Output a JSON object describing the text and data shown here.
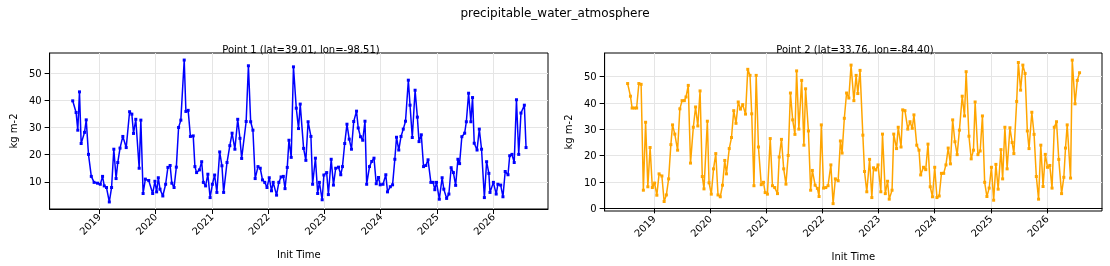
{
  "chart_data": [
    {
      "type": "line",
      "title": "Point 1 (lat=39.01, lon=-98.51)",
      "annotations": [
        "precipitable_water_atmosphere"
      ],
      "xlabel": "Init Time",
      "ylabel": "kg m-2",
      "color": "#0000ff",
      "marker": "square",
      "grid": true,
      "xlim": [
        2018.12,
        2026.97
      ],
      "xticks": [
        2019,
        2020,
        2021,
        2022,
        2023,
        2024,
        2025,
        2026
      ],
      "ylim": [
        0,
        57.4
      ],
      "yticks": [
        10,
        20,
        30,
        40,
        50
      ],
      "x": [
        2018.53,
        2018.59,
        2018.62,
        2018.65,
        2018.68,
        2018.74,
        2018.77,
        2018.81,
        2018.86,
        2018.91,
        2018.97,
        2019.02,
        2019.06,
        2019.09,
        2019.13,
        2019.18,
        2019.22,
        2019.26,
        2019.3,
        2019.33,
        2019.37,
        2019.42,
        2019.48,
        2019.54,
        2019.58,
        2019.61,
        2019.65,
        2019.71,
        2019.74,
        2019.78,
        2019.82,
        2019.88,
        2019.95,
        2019.99,
        2020.02,
        2020.05,
        2020.08,
        2020.13,
        2020.18,
        2020.22,
        2020.26,
        2020.29,
        2020.33,
        2020.37,
        2020.41,
        2020.45,
        2020.51,
        2020.54,
        2020.58,
        2020.62,
        2020.67,
        2020.7,
        2020.73,
        2020.78,
        2020.82,
        2020.85,
        2020.89,
        2020.93,
        2020.97,
        2021.01,
        2021.05,
        2021.09,
        2021.14,
        2021.18,
        2021.21,
        2021.27,
        2021.32,
        2021.36,
        2021.41,
        2021.46,
        2021.5,
        2021.53,
        2021.61,
        2021.65,
        2021.69,
        2021.73,
        2021.77,
        2021.82,
        2021.86,
        2021.9,
        2021.94,
        2021.98,
        2022.02,
        2022.06,
        2022.09,
        2022.15,
        2022.19,
        2022.23,
        2022.27,
        2022.3,
        2022.34,
        2022.37,
        2022.41,
        2022.45,
        2022.5,
        2022.54,
        2022.57,
        2022.63,
        2022.67,
        2022.71,
        2022.76,
        2022.79,
        2022.84,
        2022.88,
        2022.91,
        2022.96,
        2022.99,
        2023.04,
        2023.07,
        2023.12,
        2023.16,
        2023.2,
        2023.25,
        2023.29,
        2023.32,
        2023.36,
        2023.4,
        2023.44,
        2023.48,
        2023.52,
        2023.57,
        2023.6,
        2023.64,
        2023.68,
        2023.72,
        2023.75,
        2023.8,
        2023.84,
        2023.88,
        2023.92,
        2023.96,
        2023.99,
        2024.04,
        2024.09,
        2024.12,
        2024.17,
        2024.21,
        2024.25,
        2024.28,
        2024.32,
        2024.36,
        2024.4,
        2024.44,
        2024.49,
        2024.52,
        2024.56,
        2024.61,
        2024.65,
        2024.68,
        2024.72,
        2024.76,
        2024.8,
        2024.84,
        2024.89,
        2024.93,
        2024.96,
        2024.99,
        2025.04,
        2025.09,
        2025.12,
        2025.17,
        2025.21,
        2025.25,
        2025.29,
        2025.33,
        2025.37,
        2025.4,
        2025.44,
        2025.49,
        2025.52,
        2025.56,
        2025.6,
        2025.63,
        2025.66,
        2025.71,
        2025.75,
        2025.79,
        2025.84,
        2025.88,
        2025.92,
        2025.94,
        2026.0,
        2026.05,
        2026.08,
        2026.13,
        2026.17,
        2026.21,
        2026.26,
        2026.29,
        2026.33,
        2026.37,
        2026.41,
        2026.45,
        2026.49,
        2026.55,
        2026.58
      ],
      "values": [
        39.8,
        35.5,
        29,
        43.1,
        24.1,
        28.2,
        32.8,
        20.1,
        12,
        9.8,
        9.5,
        9.1,
        12,
        8.5,
        7.9,
        2.6,
        7.9,
        22,
        11.2,
        17.1,
        22.4,
        26.7,
        22.6,
        35.8,
        34.9,
        27.8,
        33,
        15,
        32.7,
        5.7,
        11,
        10.5,
        5.7,
        10.2,
        6.3,
        11.5,
        7.3,
        4.8,
        9.1,
        15.3,
        16,
        9.5,
        7.9,
        15.4,
        30,
        32.7,
        54.8,
        35.9,
        36.3,
        26.7,
        26.9,
        15.6,
        13.4,
        14.4,
        17.4,
        9.8,
        8.5,
        12.8,
        4.2,
        9.1,
        12.5,
        6.1,
        21,
        15.9,
        6.1,
        17.1,
        23.3,
        27.9,
        22,
        33,
        26,
        18.6,
        32.2,
        52.7,
        32.1,
        29,
        11.2,
        15.6,
        15,
        10.7,
        9.8,
        7.9,
        11.5,
        6.7,
        9.8,
        5.1,
        9.8,
        11.8,
        12,
        7.5,
        15.3,
        25.3,
        19,
        52.3,
        37.1,
        29.6,
        38.6,
        22.3,
        17.9,
        32.1,
        26.7,
        9.1,
        18.7,
        5.7,
        9.8,
        3.4,
        12.5,
        13.4,
        5.3,
        18.3,
        8.8,
        15,
        15.4,
        12.6,
        15.6,
        24.1,
        31.2,
        25.7,
        22,
        32.2,
        36,
        29.8,
        26.6,
        25.3,
        32.3,
        9.1,
        15.6,
        17.5,
        18.7,
        9.3,
        11.6,
        8.9,
        9.1,
        12.6,
        6.3,
        8.2,
        8.9,
        18.3,
        26.4,
        21.7,
        26.7,
        29.4,
        32.3,
        47.4,
        38.2,
        26.3,
        43.7,
        33.8,
        24.8,
        27.3,
        15.6,
        16,
        18.1,
        9.8,
        9.8,
        7.1,
        9.8,
        3.6,
        11.5,
        7.3,
        3.9,
        5.5,
        15.2,
        13.4,
        8.7,
        18.3,
        16.7,
        26.6,
        27.9,
        32.1,
        42.6,
        32.1,
        41,
        24.2,
        21.7,
        29.4,
        22,
        4.2,
        17.4,
        13.1,
        6.1,
        9.8,
        5.5,
        9.1,
        8.8,
        4.5,
        13.8,
        12.6,
        19.6,
        20.1,
        17.1,
        40.2,
        20.1,
        35.3,
        38.2,
        22.6
      ]
    },
    {
      "type": "line",
      "title": "Point 2 (lat=33.76, lon=-84.40)",
      "xlabel": "Init Time",
      "ylabel": "kg m-2",
      "color": "#ffa500",
      "marker": "square",
      "grid": true,
      "xlim": [
        2018.12,
        2026.98
      ],
      "xticks": [
        2019,
        2020,
        2021,
        2022,
        2023,
        2024,
        2025,
        2026
      ],
      "ylim": [
        -1,
        59
      ],
      "yticks": [
        0,
        10,
        20,
        30,
        40,
        50
      ],
      "x": [
        2018.53,
        2018.58,
        2018.61,
        2018.65,
        2018.69,
        2018.73,
        2018.77,
        2018.81,
        2018.85,
        2018.89,
        2018.93,
        2018.97,
        2019.01,
        2019.05,
        2019.09,
        2019.14,
        2019.18,
        2019.22,
        2019.26,
        2019.3,
        2019.33,
        2019.37,
        2019.42,
        2019.46,
        2019.5,
        2019.54,
        2019.57,
        2019.61,
        2019.65,
        2019.7,
        2019.74,
        2019.78,
        2019.82,
        2019.86,
        2019.89,
        2019.95,
        2019.98,
        2020.02,
        2020.06,
        2020.1,
        2020.14,
        2020.18,
        2020.22,
        2020.26,
        2020.29,
        2020.34,
        2020.38,
        2020.42,
        2020.46,
        2020.5,
        2020.54,
        2020.58,
        2020.63,
        2020.67,
        2020.71,
        2020.74,
        2020.78,
        2020.82,
        2020.86,
        2020.91,
        2020.95,
        2020.98,
        2021.02,
        2021.07,
        2021.11,
        2021.15,
        2021.2,
        2021.23,
        2021.27,
        2021.31,
        2021.35,
        2021.39,
        2021.43,
        2021.47,
        2021.51,
        2021.54,
        2021.58,
        2021.63,
        2021.67,
        2021.7,
        2021.75,
        2021.79,
        2021.82,
        2021.87,
        2021.91,
        2021.94,
        2021.98,
        2022.02,
        2022.06,
        2022.1,
        2022.15,
        2022.19,
        2022.23,
        2022.28,
        2022.32,
        2022.35,
        2022.39,
        2022.43,
        2022.47,
        2022.51,
        2022.56,
        2022.6,
        2022.63,
        2022.67,
        2022.72,
        2022.75,
        2022.79,
        2022.84,
        2022.88,
        2022.91,
        2022.95,
        2022.99,
        2023.04,
        2023.07,
        2023.12,
        2023.16,
        2023.19,
        2023.24,
        2023.27,
        2023.32,
        2023.35,
        2023.4,
        2023.43,
        2023.47,
        2023.52,
        2023.56,
        2023.6,
        2023.63,
        2023.68,
        2023.72,
        2023.75,
        2023.8,
        2023.84,
        2023.88,
        2023.92,
        2023.96,
        2024.0,
        2024.04,
        2024.08,
        2024.12,
        2024.16,
        2024.2,
        2024.24,
        2024.28,
        2024.32,
        2024.36,
        2024.4,
        2024.44,
        2024.49,
        2024.53,
        2024.56,
        2024.61,
        2024.65,
        2024.69,
        2024.72,
        2024.77,
        2024.81,
        2024.85,
        2024.89,
        2024.93,
        2024.97,
        2025.01,
        2025.05,
        2025.09,
        2025.13,
        2025.18,
        2025.21,
        2025.25,
        2025.29,
        2025.34,
        2025.38,
        2025.41,
        2025.46,
        2025.49,
        2025.53,
        2025.57,
        2025.61,
        2025.65,
        2025.68,
        2025.73,
        2025.77,
        2025.81,
        2025.85,
        2025.89,
        2025.93,
        2025.97,
        2026.01,
        2026.05,
        2026.09,
        2026.13,
        2026.17,
        2026.21,
        2026.26,
        2026.3,
        2026.33,
        2026.36,
        2026.42,
        2026.45,
        2026.5,
        2026.54,
        2026.58
      ],
      "values": [
        47.4,
        42.6,
        38.1,
        38.1,
        38.1,
        47.4,
        47.1,
        6.9,
        32.7,
        8.2,
        23.1,
        7.9,
        9.6,
        5,
        13.1,
        12.3,
        2.6,
        5.1,
        11.2,
        24.2,
        31.7,
        28.2,
        22.1,
        37.8,
        40.9,
        40.9,
        42.3,
        46.7,
        17.2,
        30.8,
        38.5,
        31.3,
        44.6,
        12.1,
        7.4,
        33.1,
        9.7,
        5.4,
        15,
        20.8,
        5.1,
        4.4,
        8.8,
        18.2,
        13.1,
        22.7,
        26.9,
        37.1,
        32.3,
        40.4,
        37.7,
        39.4,
        35.8,
        52.8,
        50.5,
        35.9,
        8.6,
        50.5,
        23.3,
        9,
        9.9,
        6,
        5.4,
        26.5,
        8.6,
        7.9,
        5.6,
        19.5,
        26.2,
        15,
        9.2,
        20.1,
        43.8,
        33.6,
        28.1,
        52.2,
        30.1,
        48.6,
        24,
        45.4,
        29.4,
        6.9,
        14.4,
        8.8,
        7.6,
        4.5,
        31.7,
        7.7,
        7.9,
        8.6,
        16.5,
        1.8,
        11.2,
        10.5,
        25.6,
        21,
        34.2,
        43.8,
        41.9,
        54.4,
        40.9,
        50.5,
        43.6,
        52.4,
        27.8,
        14,
        6.3,
        18.6,
        4.1,
        15.4,
        14.6,
        16.5,
        6.3,
        28.2,
        5.6,
        10.3,
        3.5,
        6.9,
        28.2,
        22.7,
        30.8,
        23.3,
        37.4,
        37.1,
        30.1,
        32.9,
        30.4,
        35.5,
        24,
        22.1,
        12.7,
        15.6,
        14.7,
        24.4,
        8.2,
        4.4,
        15.6,
        4.1,
        4.7,
        13.3,
        13.3,
        16.5,
        22.9,
        16.9,
        33.6,
        25.3,
        20.4,
        29.7,
        42.6,
        35.1,
        51.9,
        27.4,
        18.8,
        22.1,
        40.4,
        20.4,
        21.8,
        35.1,
        9.9,
        4.5,
        7.7,
        15.6,
        3.1,
        16.7,
        7.3,
        22.3,
        11.2,
        30.8,
        15,
        30.6,
        25,
        20.8,
        40.6,
        55.4,
        44.9,
        54.4,
        51.2,
        29.4,
        22.7,
        36.5,
        28.1,
        12.1,
        3.5,
        24,
        8.3,
        20.5,
        15.6,
        16.3,
        7.7,
        30.8,
        32.9,
        18.6,
        5.6,
        11.8,
        22.9,
        31.7,
        11.5,
        56.3,
        39.7,
        48.6,
        51.5
      ]
    }
  ]
}
